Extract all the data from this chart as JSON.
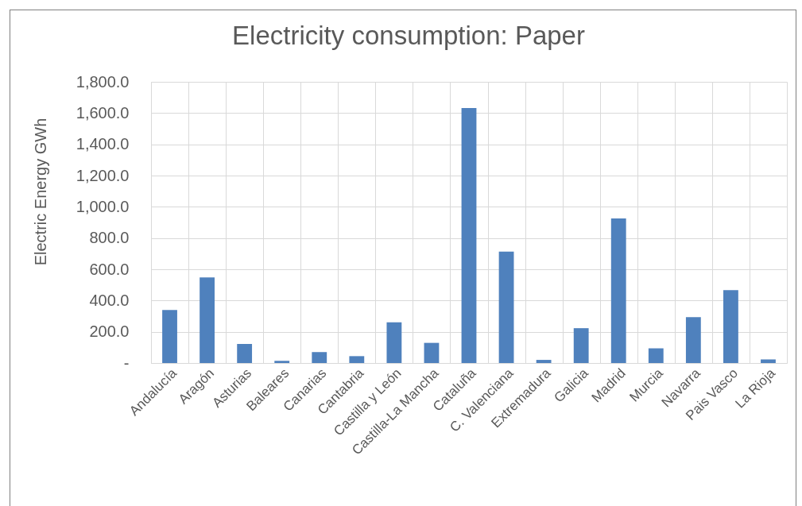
{
  "chart_data": {
    "type": "bar",
    "title": "Electricity consumption: Paper",
    "ylabel": "Electric Energy GWh",
    "categories": [
      "Andalucía",
      "Aragón",
      "Asturias",
      "Baleares",
      "Canarias",
      "Cantabria",
      "Castilla y León",
      "Castilla-La Mancha",
      "Cataluña",
      "C. Valenciana",
      "Extremadura",
      "Galicia",
      "Madrid",
      "Murcia",
      "Navarra",
      "Pais Vasco",
      "La Rioja"
    ],
    "values": [
      340,
      548,
      122,
      14,
      70,
      44,
      260,
      129,
      1632,
      713,
      20,
      223,
      925,
      94,
      294,
      467,
      23
    ],
    "color": "#4f81bd",
    "ylim": [
      0,
      1800
    ],
    "yticks": [
      {
        "value": 0,
        "label": "-"
      },
      {
        "value": 200,
        "label": "200.0"
      },
      {
        "value": 400,
        "label": "400.0"
      },
      {
        "value": 600,
        "label": "600.0"
      },
      {
        "value": 800,
        "label": "800.0"
      },
      {
        "value": 1000,
        "label": "1,000.0"
      },
      {
        "value": 1200,
        "label": "1,200.0"
      },
      {
        "value": 1400,
        "label": "1,400.0"
      },
      {
        "value": 1600,
        "label": "1,600.0"
      },
      {
        "value": 1800,
        "label": "1,800.0"
      }
    ],
    "grid": true
  }
}
